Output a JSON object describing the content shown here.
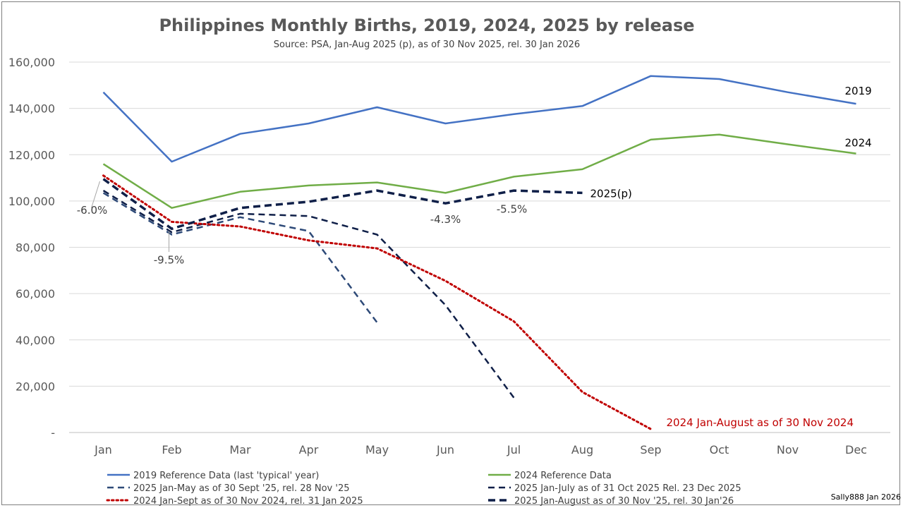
{
  "chart_data": {
    "type": "line",
    "title": "Philippines Monthly Births, 2019, 2024, 2025 by release",
    "subtitle": "Source: PSA, Jan-Aug 2025 (p), as of 30 Nov 2025, rel. 30 Jan 2026",
    "categories": [
      "Jan",
      "Feb",
      "Mar",
      "Apr",
      "May",
      "Jun",
      "Jul",
      "Aug",
      "Sep",
      "Oct",
      "Nov",
      "Dec"
    ],
    "ylim": [
      0,
      160000
    ],
    "yticks": [
      0,
      20000,
      40000,
      60000,
      80000,
      100000,
      120000,
      140000,
      160000
    ],
    "ytick_labels": [
      "-",
      "20,000",
      "40,000",
      "60,000",
      "80,000",
      "100,000",
      "120,000",
      "140,000",
      "160,000"
    ],
    "grid": true,
    "legend_position": "bottom",
    "series": [
      {
        "name": "2019  Reference Data (last 'typical' year)",
        "color": "#4472c4",
        "style": "solid",
        "width": 2.5,
        "values": [
          147000,
          117000,
          129000,
          133500,
          140500,
          133500,
          137500,
          141000,
          154000,
          152700,
          147000,
          142000
        ],
        "end_label": "2019"
      },
      {
        "name": "2024 Reference Data",
        "color": "#70ad47",
        "style": "solid",
        "width": 2.5,
        "values": [
          116000,
          97000,
          104000,
          106700,
          108000,
          103500,
          110500,
          113700,
          126500,
          128700,
          124500,
          120500
        ],
        "end_label": "2024"
      },
      {
        "name": "2025 Jan-May as of 30 Sept '25, rel. 28 Nov '25",
        "color": "#2e4a78",
        "style": "dash",
        "width": 2.5,
        "values": [
          103500,
          85500,
          93000,
          87000,
          47500,
          null,
          null,
          null,
          null,
          null,
          null,
          null
        ]
      },
      {
        "name": "2025 Jan-July as of 31 Oct 2025 Rel. 23 Dec 2025",
        "color": "#0f1f48",
        "style": "dash",
        "width": 2.5,
        "values": [
          104500,
          86500,
          94500,
          93500,
          85500,
          55000,
          15000,
          null,
          null,
          null,
          null,
          null
        ]
      },
      {
        "name": "2024 Jan-Sept as of 30 Nov 2024, rel. 31 Jan 2025",
        "color": "#c00000",
        "style": "dot",
        "width": 3,
        "values": [
          111000,
          91000,
          89000,
          83000,
          79500,
          65500,
          48000,
          17500,
          1500,
          null,
          null,
          null
        ]
      },
      {
        "name": "2025 Jan-August as of 30 Nov '25, rel. 30 Jan'26",
        "color": "#0f1f48",
        "style": "dash-bold",
        "width": 3.5,
        "values": [
          109500,
          88000,
          97000,
          99700,
          104500,
          99000,
          104500,
          103500,
          null,
          null,
          null,
          null
        ],
        "end_label": "2025(p)"
      }
    ],
    "annotations": [
      {
        "text": "-6.0%",
        "color": "#404040"
      },
      {
        "text": "-9.5%",
        "color": "#404040"
      },
      {
        "text": "-4.3%",
        "color": "#404040"
      },
      {
        "text": "-5.5%",
        "color": "#404040"
      },
      {
        "text": "2024 Jan-August as of 30 Nov 2024",
        "color": "#c00000"
      }
    ]
  },
  "credit": "Sally888 Jan 2026"
}
